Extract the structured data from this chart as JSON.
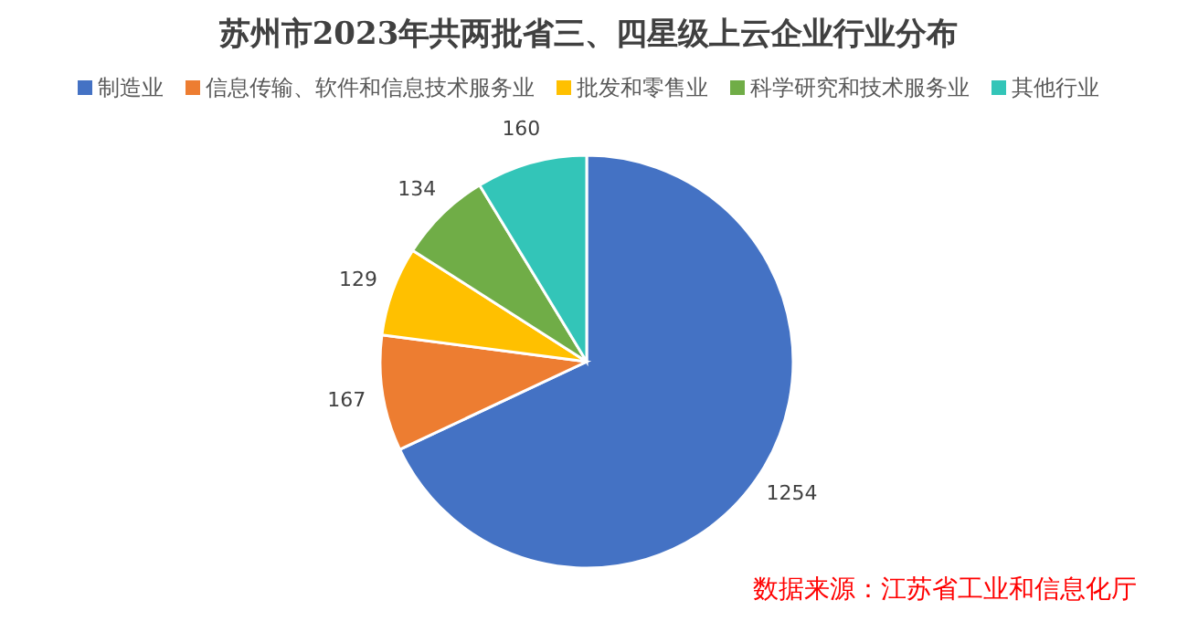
{
  "chart_data": {
    "type": "pie",
    "title": "苏州市2023年共两批省三、四星级上云企业行业分布",
    "categories": [
      "制造业",
      "信息传输、软件和信息技术服务业",
      "批发和零售业",
      "科学研究和技术服务业",
      "其他行业"
    ],
    "values": [
      1254,
      167,
      129,
      134,
      160
    ],
    "colors": [
      "#4472c4",
      "#ed7d31",
      "#ffc000",
      "#70ad47",
      "#33c5b8"
    ],
    "data_labels": true,
    "legend": "top",
    "annotations": [
      "数据来源：江苏省工业和信息化厅"
    ]
  }
}
